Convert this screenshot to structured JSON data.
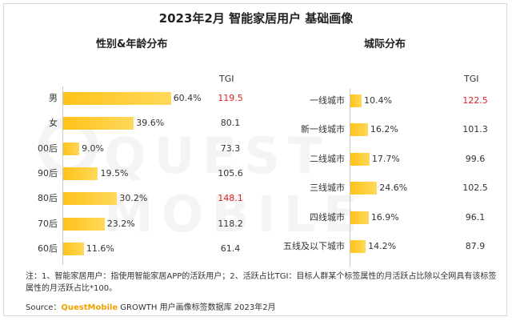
{
  "title": "2023年2月 智能家居用户 基础画像",
  "tgi_label": "TGI",
  "watermark": "QUEST MOBILE",
  "note": "注：1、智能家居用户：指使用智能家居APP的活跃用户；2、活跃占比TGI：目标人群某个标签属性的月活跃占比除以全网具有该标签属性的月活跃占比*100。",
  "source_prefix": "Source：",
  "source_brand": "QuestMobile",
  "source_rest": " GROWTH 用户画像标签数据库 2023年2月",
  "colors": {
    "bar": "#ffc21a",
    "tgi_high": "#e02020"
  },
  "chart_data": [
    {
      "type": "bar",
      "orientation": "horizontal",
      "title": "性别&年龄分布",
      "categories": [
        "男",
        "女",
        "00后",
        "90后",
        "80后",
        "70后",
        "60后"
      ],
      "values": [
        60.4,
        39.6,
        9.0,
        19.5,
        30.2,
        23.2,
        11.6
      ],
      "value_labels": [
        "60.4%",
        "39.6%",
        "9.0%",
        "19.5%",
        "30.2%",
        "23.2%",
        "11.6%"
      ],
      "tgi": [
        "119.5",
        "80.1",
        "73.3",
        "105.6",
        "148.1",
        "118.2",
        "61.4"
      ],
      "tgi_highlight": [
        true,
        false,
        false,
        false,
        true,
        false,
        false
      ],
      "unit": "%",
      "xlim": [
        0,
        100
      ]
    },
    {
      "type": "bar",
      "orientation": "horizontal",
      "title": "城际分布",
      "categories": [
        "一线城市",
        "新一线城市",
        "二线城市",
        "三线城市",
        "四线城市",
        "五线及以下城市"
      ],
      "values": [
        10.4,
        16.2,
        17.7,
        24.6,
        16.9,
        14.2
      ],
      "value_labels": [
        "10.4%",
        "16.2%",
        "17.7%",
        "24.6%",
        "16.9%",
        "14.2%"
      ],
      "tgi": [
        "122.5",
        "101.3",
        "99.6",
        "102.5",
        "96.1",
        "87.9"
      ],
      "tgi_highlight": [
        true,
        false,
        false,
        false,
        false,
        false
      ],
      "unit": "%",
      "xlim": [
        0,
        100
      ]
    }
  ]
}
